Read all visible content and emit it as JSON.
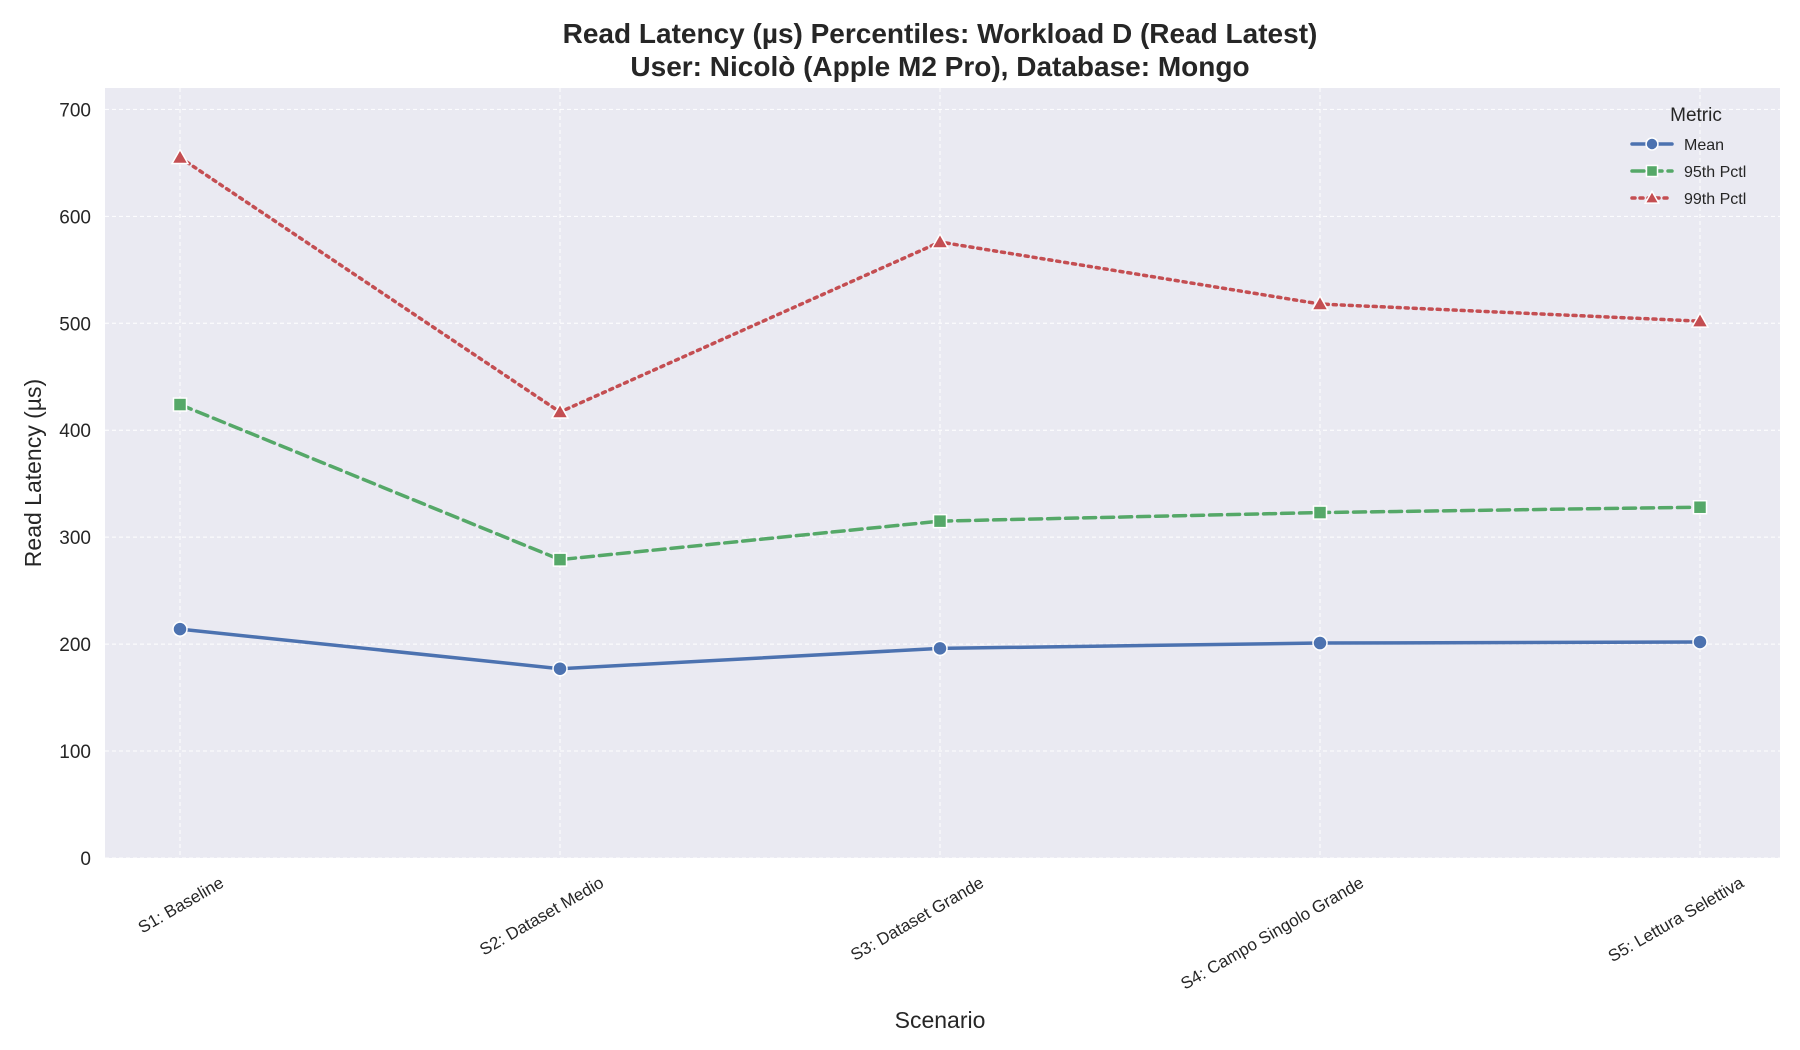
{
  "chart_data": {
    "type": "line",
    "title": "Read Latency (µs) Percentiles: Workload D (Read Latest)",
    "subtitle": "User: Nicolò (Apple M2 Pro), Database: Mongo",
    "xlabel": "Scenario",
    "ylabel": "Read Latency (µs)",
    "categories": [
      "S1: Baseline",
      "S2: Dataset Medio",
      "S3: Dataset Grande",
      "S4: Campo Singolo Grande",
      "S5: Lettura Selettiva"
    ],
    "ylim": [
      0,
      720
    ],
    "yticks": [
      0,
      100,
      200,
      300,
      400,
      500,
      600,
      700
    ],
    "grid": true,
    "legend": {
      "title": "Metric",
      "position": "top-right"
    },
    "series": [
      {
        "name": "Mean",
        "values": [
          214,
          177,
          196,
          201,
          202
        ],
        "color": "#4c72b0",
        "marker": "circle",
        "dash": "solid"
      },
      {
        "name": "95th Pctl",
        "values": [
          424,
          279,
          315,
          323,
          328
        ],
        "color": "#55a868",
        "marker": "square",
        "dash": "dashed"
      },
      {
        "name": "99th Pctl",
        "values": [
          655,
          417,
          576,
          518,
          502
        ],
        "color": "#c44e52",
        "marker": "triangle",
        "dash": "dotted"
      }
    ]
  }
}
